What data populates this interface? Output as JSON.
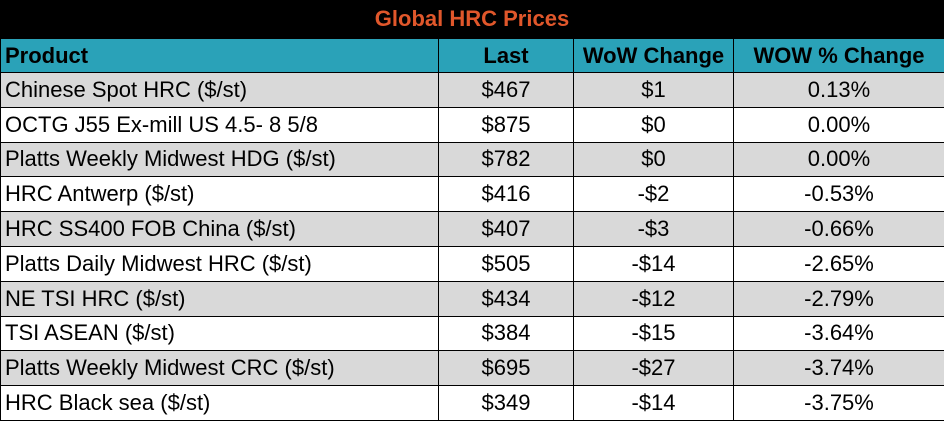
{
  "title": "Global HRC Prices",
  "colors": {
    "title_text": "#e0572b",
    "title_background": "#000000",
    "header_background": "#2aa2b8",
    "shaded_row": "#d9d9d9",
    "plain_row": "#ffffff"
  },
  "columns": [
    "Product",
    "Last",
    "WoW Change",
    "WOW % Change"
  ],
  "rows": [
    {
      "product": "Chinese Spot HRC ($/st)",
      "last": "$467",
      "wow": "$1",
      "pct": "0.13%"
    },
    {
      "product": "OCTG J55 Ex-mill US 4.5- 8 5/8",
      "last": "$875",
      "wow": "$0",
      "pct": "0.00%"
    },
    {
      "product": "Platts Weekly Midwest HDG ($/st)",
      "last": "$782",
      "wow": "$0",
      "pct": "0.00%"
    },
    {
      "product": "HRC Antwerp ($/st)",
      "last": "$416",
      "wow": "-$2",
      "pct": "-0.53%"
    },
    {
      "product": "HRC SS400 FOB China ($/st)",
      "last": "$407",
      "wow": "-$3",
      "pct": "-0.66%"
    },
    {
      "product": "Platts Daily Midwest HRC ($/st)",
      "last": "$505",
      "wow": "-$14",
      "pct": "-2.65%"
    },
    {
      "product": "NE TSI HRC ($/st)",
      "last": "$434",
      "wow": "-$12",
      "pct": "-2.79%"
    },
    {
      "product": "TSI ASEAN ($/st)",
      "last": "$384",
      "wow": "-$15",
      "pct": "-3.64%"
    },
    {
      "product": "Platts Weekly Midwest CRC ($/st)",
      "last": "$695",
      "wow": "-$27",
      "pct": "-3.74%"
    },
    {
      "product": "HRC Black sea ($/st)",
      "last": "$349",
      "wow": "-$14",
      "pct": "-3.75%"
    }
  ]
}
